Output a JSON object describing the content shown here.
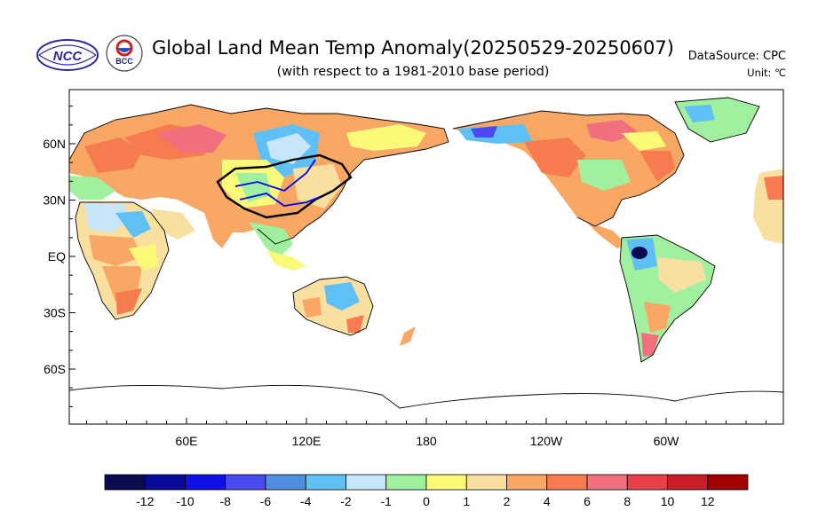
{
  "header": {
    "title": "Global Land Mean Temp Anomaly(20250529-20250607)",
    "subtitle": "(with respect to a 1981-2010 base period)",
    "datasource": "DataSource:  CPC",
    "unit": "Unit:  ℃",
    "logo_left_text": "NCC",
    "logo_right_text": "BCC"
  },
  "map": {
    "lat_labels": [
      "60N",
      "30N",
      "EQ",
      "30S",
      "60S"
    ],
    "lat_values": [
      60,
      30,
      0,
      -30,
      -60
    ],
    "lon_labels": [
      "60E",
      "120E",
      "180",
      "120W",
      "60W"
    ],
    "lon_values": [
      60,
      120,
      180,
      240,
      300
    ],
    "lon_range": [
      0,
      360
    ],
    "lat_range": [
      -90,
      90
    ],
    "projection": "cylindrical-equidistant"
  },
  "colorbar": {
    "labels": [
      "-12",
      "-10",
      "-8",
      "-6",
      "-4",
      "-2",
      "-1",
      "0",
      "1",
      "2",
      "4",
      "6",
      "8",
      "10",
      "12"
    ],
    "colors": [
      "#0a0a50",
      "#0a0a9a",
      "#1010e6",
      "#4a4af0",
      "#4f8fe0",
      "#5fc0f5",
      "#c8e6fa",
      "#a0f0a0",
      "#fafa78",
      "#fae0a0",
      "#f8a864",
      "#f67c50",
      "#f07080",
      "#e8404a",
      "#c81e28",
      "#a00000"
    ]
  }
}
